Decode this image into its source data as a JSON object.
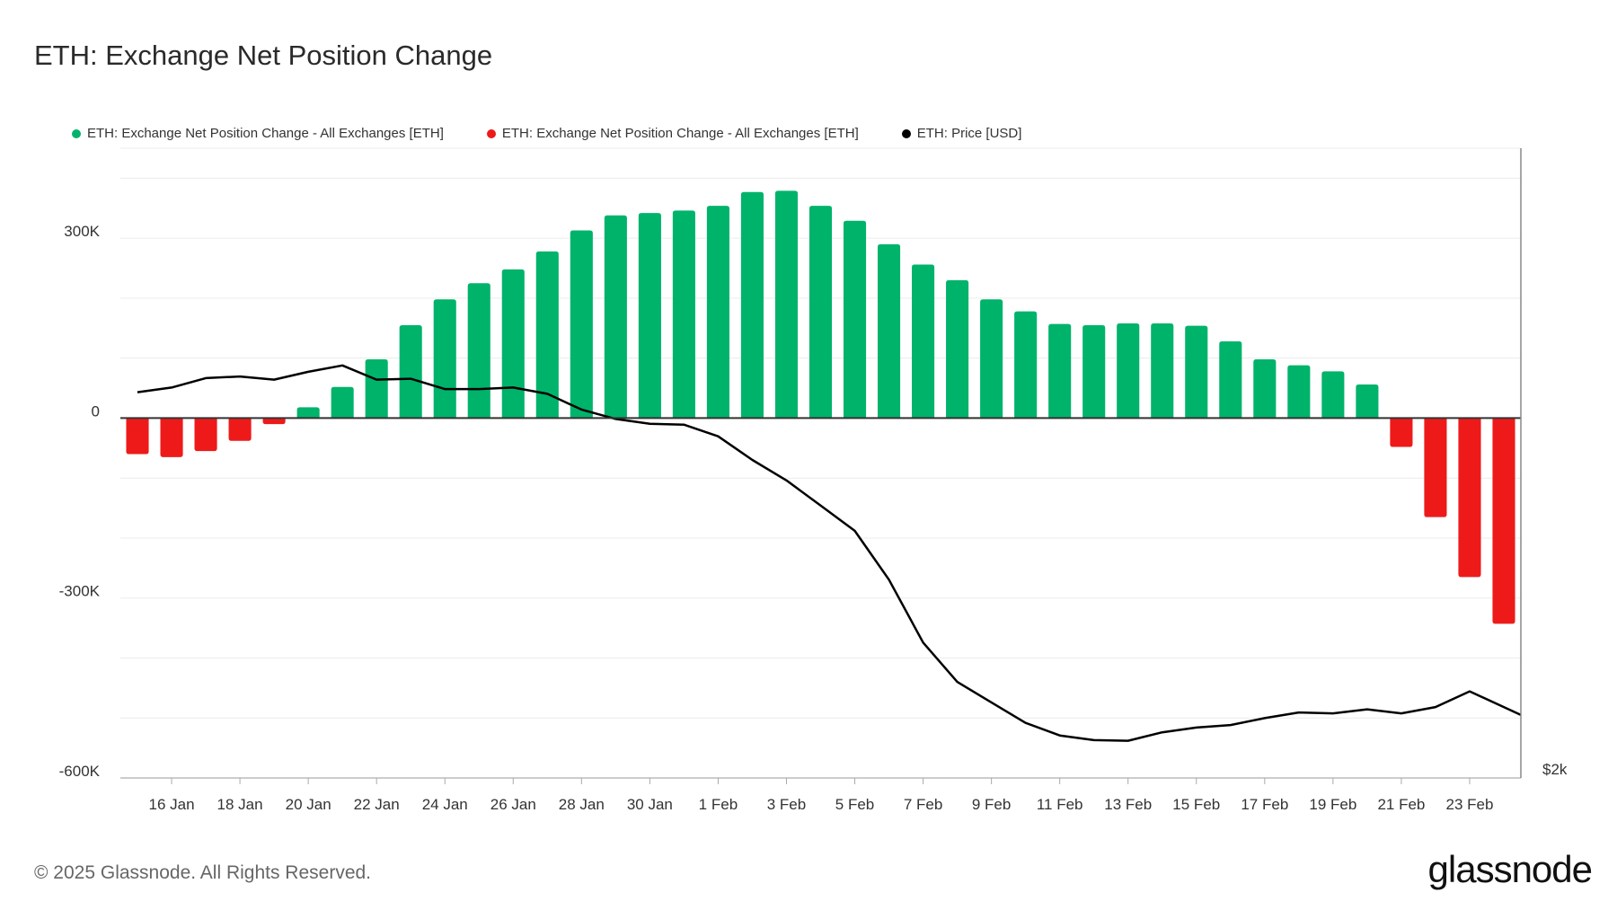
{
  "title": "ETH: Exchange Net Position Change",
  "legend": [
    {
      "label": "ETH: Exchange Net Position Change - All Exchanges [ETH]",
      "color": "#00b36b"
    },
    {
      "label": "ETH: Exchange Net Position Change - All Exchanges [ETH]",
      "color": "#ee1a1a"
    },
    {
      "label": "ETH: Price [USD]",
      "color": "#000000"
    }
  ],
  "footer": "© 2025 Glassnode. All Rights Reserved.",
  "logo": "glassnode",
  "chart_data": {
    "type": "bar",
    "title": "ETH: Exchange Net Position Change",
    "categories": [
      "15 Jan",
      "16 Jan",
      "17 Jan",
      "18 Jan",
      "19 Jan",
      "20 Jan",
      "21 Jan",
      "22 Jan",
      "23 Jan",
      "24 Jan",
      "25 Jan",
      "26 Jan",
      "27 Jan",
      "28 Jan",
      "29 Jan",
      "30 Jan",
      "31 Jan",
      "1 Feb",
      "2 Feb",
      "3 Feb",
      "4 Feb",
      "5 Feb",
      "6 Feb",
      "7 Feb",
      "8 Feb",
      "9 Feb",
      "10 Feb",
      "11 Feb",
      "12 Feb",
      "13 Feb",
      "14 Feb",
      "15 Feb",
      "16 Feb",
      "17 Feb",
      "18 Feb",
      "19 Feb",
      "20 Feb",
      "21 Feb",
      "22 Feb",
      "23 Feb",
      "24 Feb"
    ],
    "x_tick_labels": [
      "16 Jan",
      "18 Jan",
      "20 Jan",
      "22 Jan",
      "24 Jan",
      "26 Jan",
      "28 Jan",
      "30 Jan",
      "1 Feb",
      "3 Feb",
      "5 Feb",
      "7 Feb",
      "9 Feb",
      "11 Feb",
      "13 Feb",
      "15 Feb",
      "17 Feb",
      "19 Feb",
      "21 Feb",
      "23 Feb"
    ],
    "series": [
      {
        "name": "ETH: Exchange Net Position Change - All Exchanges [ETH]",
        "axis": "left",
        "values": [
          -60000,
          -65000,
          -55000,
          -38000,
          -10000,
          18000,
          52000,
          98000,
          155000,
          198000,
          225000,
          248000,
          278000,
          313000,
          338000,
          342000,
          346000,
          354000,
          377000,
          379000,
          354000,
          329000,
          290000,
          256000,
          230000,
          198000,
          178000,
          157000,
          155000,
          158000,
          158000,
          154000,
          128000,
          98000,
          88000,
          78000,
          56000,
          -48000,
          -165000,
          -265000,
          -343000
        ]
      },
      {
        "name": "ETH: Price [USD]",
        "axis": "right",
        "values": [
          3225,
          3240,
          3270,
          3275,
          3265,
          3290,
          3310,
          3265,
          3268,
          3235,
          3235,
          3240,
          3220,
          3170,
          3140,
          3125,
          3122,
          3085,
          3010,
          2945,
          2865,
          2785,
          2630,
          2430,
          2305,
          2240,
          2175,
          2135,
          2120,
          2118,
          2145,
          2160,
          2168,
          2190,
          2208,
          2205,
          2218,
          2205,
          2225,
          2275,
          2200
        ]
      }
    ],
    "y_left": {
      "ticks": [
        300000,
        0,
        -300000,
        -600000
      ],
      "tick_labels": [
        "300K",
        "0",
        "-300K",
        "-600K"
      ],
      "range": [
        -600000,
        450000
      ]
    },
    "y_right": {
      "ticks": [
        2000
      ],
      "tick_labels": [
        "$2k"
      ],
      "range": [
        2000,
        4000
      ]
    },
    "colors": {
      "positive": "#00b36b",
      "negative": "#ee1a1a",
      "price": "#000000"
    },
    "grid": true,
    "legend_position": "top-left"
  }
}
